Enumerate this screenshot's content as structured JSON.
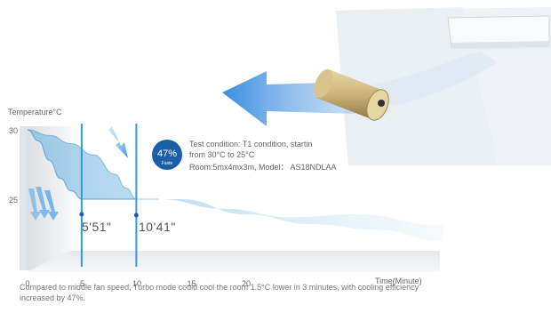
{
  "chart_data": {
    "type": "line",
    "ylabel": "Temperature°C",
    "xlabel": "Time(Minute)",
    "x_ticks": [
      0,
      5,
      10,
      15,
      20
    ],
    "y_ticks": [
      30,
      25
    ],
    "xlim": [
      0,
      38
    ],
    "ylim": [
      21,
      30.5
    ],
    "series": [
      {
        "x": [
          0,
          1,
          2,
          3,
          4,
          5,
          7,
          10
        ],
        "y": [
          30,
          29.2,
          27.8,
          26.5,
          25.6,
          25.0,
          25.0,
          25.0
        ]
      },
      {
        "x": [
          0,
          2,
          4,
          6,
          8,
          9,
          10,
          12
        ],
        "y": [
          30,
          29.6,
          29.0,
          28.2,
          26.8,
          25.8,
          25.0,
          25.0
        ]
      }
    ],
    "markers": [
      {
        "x": 5,
        "label": "5'51\""
      },
      {
        "x": 10,
        "label": "10'41\""
      }
    ],
    "badge": {
      "value": "47%",
      "sub": "Faste"
    },
    "annotations": [
      "Test condition: T1 condition, startin",
      "from 30°C to 25°C",
      "Room:5mx4mx3m, Model： AS18NDLAA"
    ]
  },
  "caption": "Compared to middle fan speed, Turbo mode could cool the room 1.5°C lower in 3 minutes, with cooling efficiency increased by 47%.",
  "colors": {
    "marker_line": "#2d9be3",
    "badge": "#1a5fa8",
    "band": "#8fc6e6",
    "arrow": "#3d8de0"
  }
}
